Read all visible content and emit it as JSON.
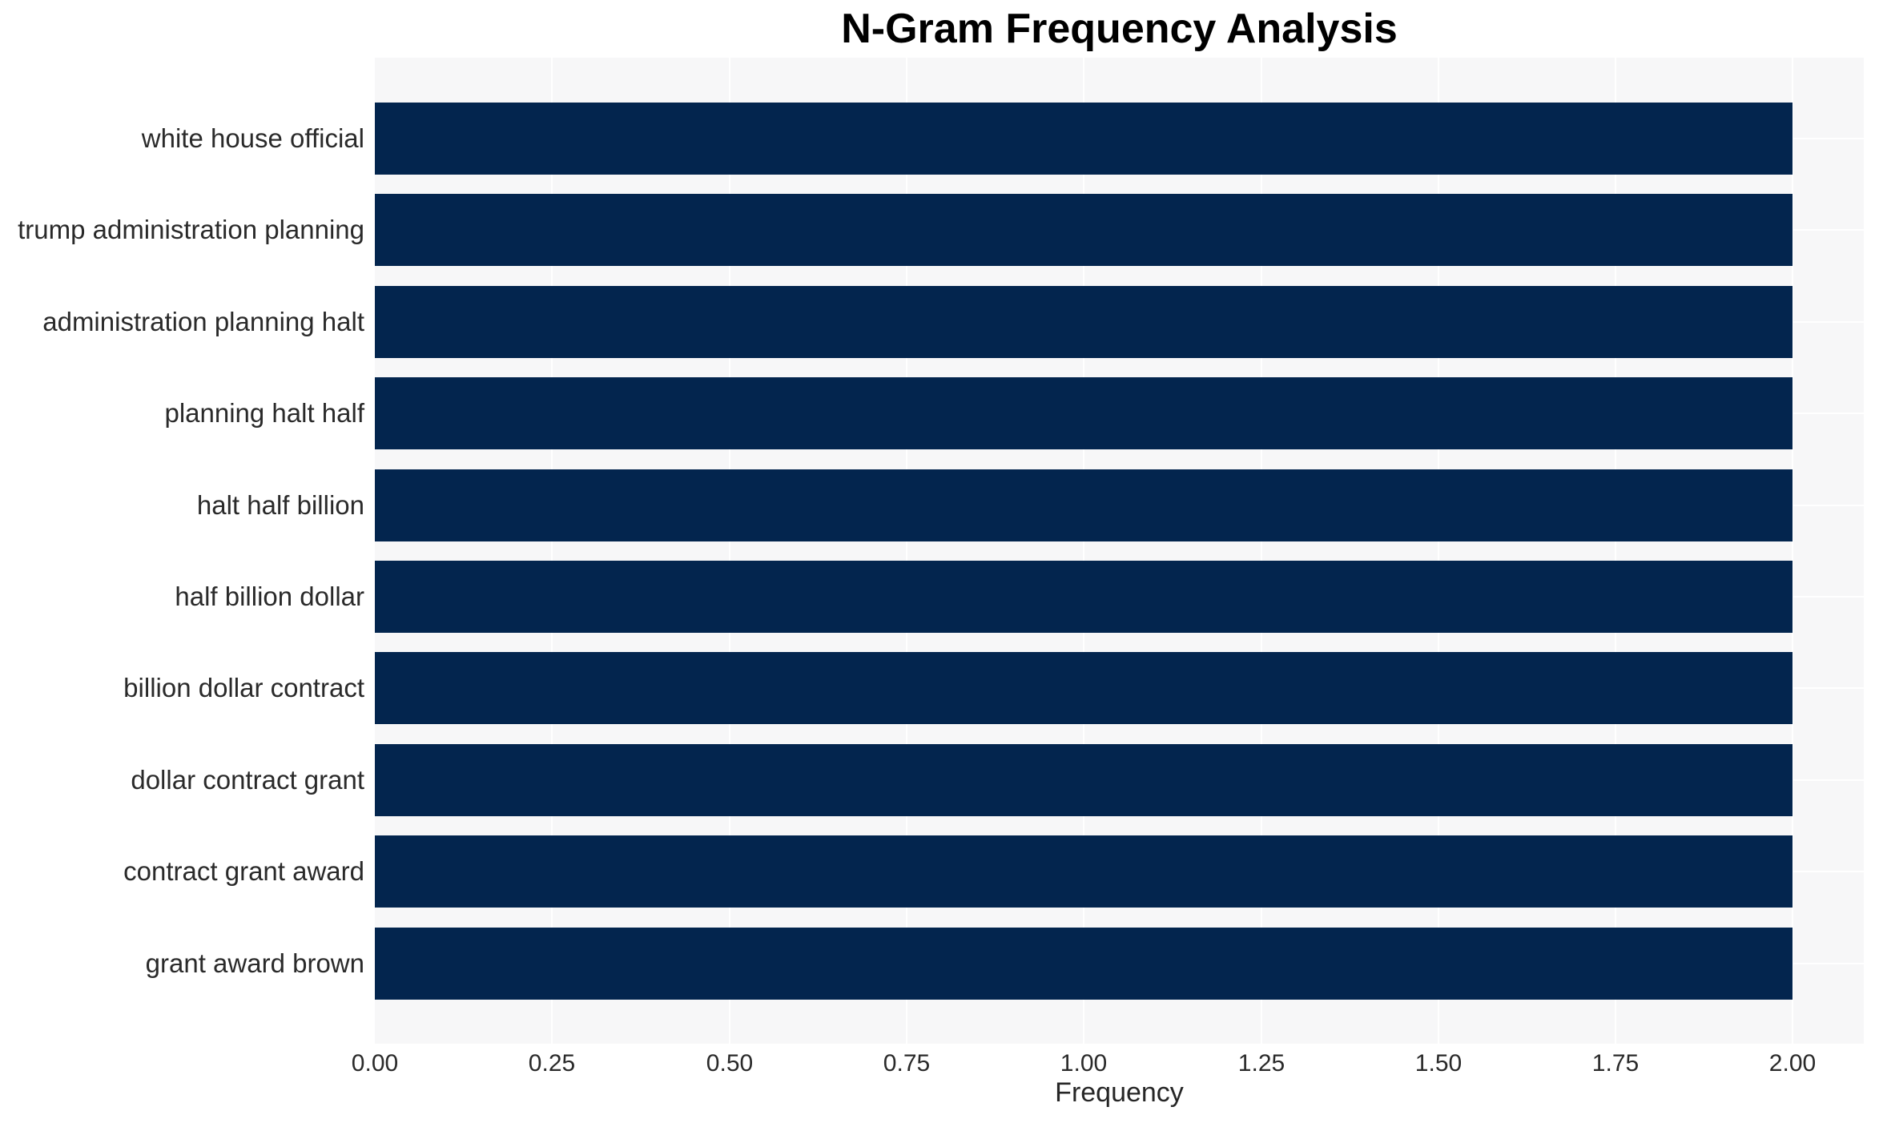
{
  "chart_data": {
    "type": "bar",
    "orientation": "horizontal",
    "title": "N-Gram Frequency Analysis",
    "xlabel": "Frequency",
    "ylabel": "",
    "categories": [
      "white house official",
      "trump administration planning",
      "administration planning halt",
      "planning halt half",
      "halt half billion",
      "half billion dollar",
      "billion dollar contract",
      "dollar contract grant",
      "contract grant award",
      "grant award brown"
    ],
    "values": [
      2,
      2,
      2,
      2,
      2,
      2,
      2,
      2,
      2,
      2
    ],
    "xlim": [
      0,
      2.1
    ],
    "xticks": [
      0.0,
      0.25,
      0.5,
      0.75,
      1.0,
      1.25,
      1.5,
      1.75,
      2.0
    ],
    "xtick_labels": [
      "0.00",
      "0.25",
      "0.50",
      "0.75",
      "1.00",
      "1.25",
      "1.50",
      "1.75",
      "2.00"
    ],
    "grid": true,
    "legend": false,
    "colors": {
      "bar": "#03254e",
      "plot_background": "#f7f7f8",
      "gridline": "#ffffff",
      "label_text": "#2a2a2a",
      "title_text": "#000000"
    }
  }
}
